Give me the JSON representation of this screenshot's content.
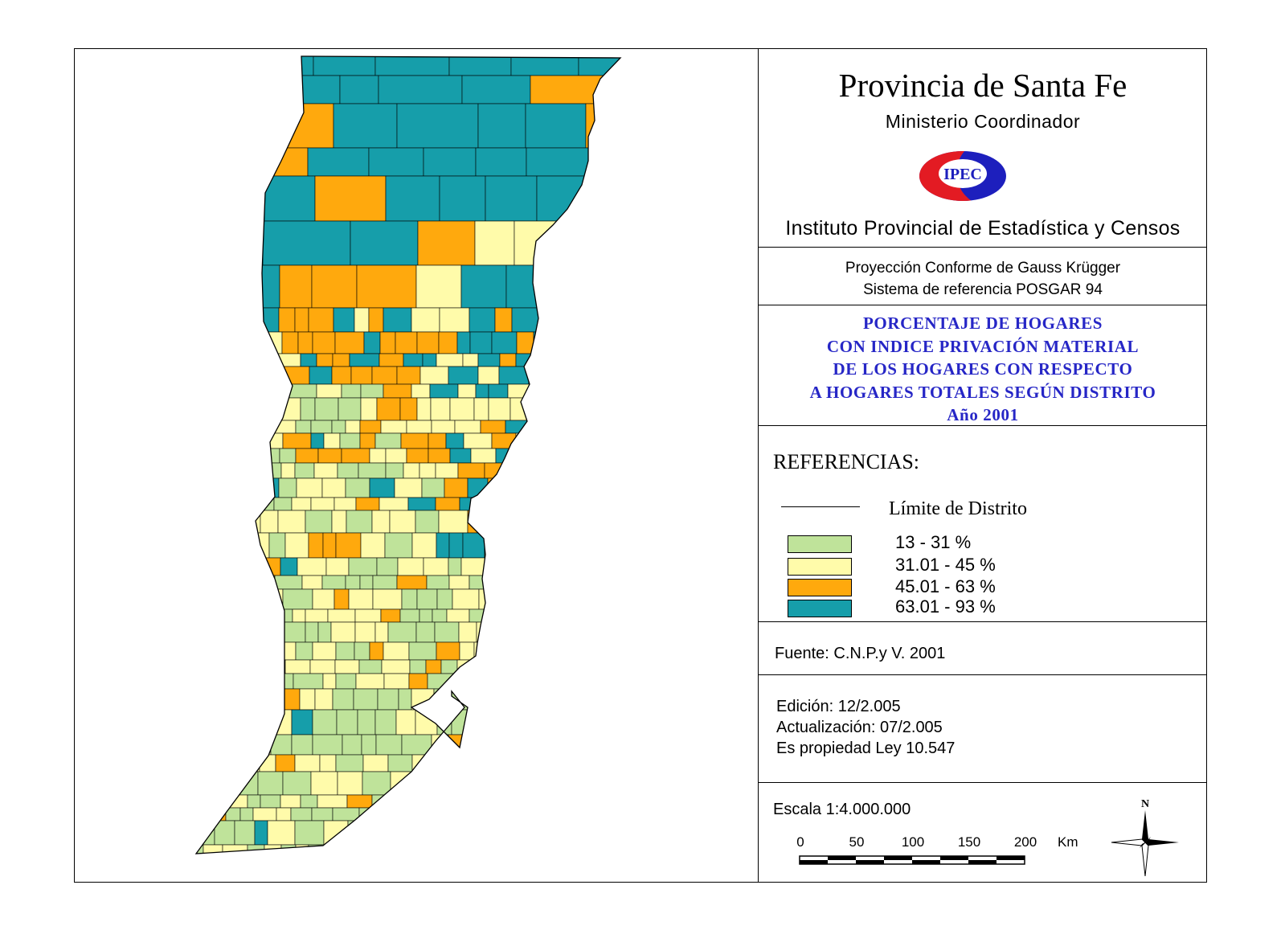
{
  "header": {
    "title": "Provincia de Santa Fe",
    "ministry": "Ministerio Coordinador",
    "logo_text": "IPEC",
    "institute": "Instituto Provincial de Estadística y Censos"
  },
  "projection": {
    "line1": "Proyección Conforme de Gauss Krügger",
    "line2": "Sistema de referencia POSGAR 94"
  },
  "theme": {
    "line1": "PORCENTAJE DE HOGARES",
    "line2": "CON INDICE PRIVACIÓN MATERIAL",
    "line3": "DE LOS HOGARES CON RESPECTO",
    "line4": "A HOGARES TOTALES SEGÚN DISTRITO",
    "line5": "Año 2001"
  },
  "legend": {
    "title": "REFERENCIAS:",
    "boundary_label": "Límite de Distrito",
    "classes": [
      {
        "label": "13 - 31 %",
        "color": "#bfe39a"
      },
      {
        "label": "31.01 - 45 %",
        "color": "#fffbaa"
      },
      {
        "label": "45.01 - 63 %",
        "color": "#ffa90d"
      },
      {
        "label": "63.01 - 93 %",
        "color": "#169eaa"
      }
    ]
  },
  "source": "Fuente:  C.N.P.y V. 2001",
  "edition": {
    "edition": "Edición:  12/2.005",
    "update": "Actualización:  07/2.005",
    "law": "Es propiedad Ley 10.547"
  },
  "scale": {
    "text": "Escala 1:4.000.000",
    "ticks": [
      "0",
      "50",
      "100",
      "150",
      "200"
    ],
    "unit": "Km",
    "north": "N"
  }
}
